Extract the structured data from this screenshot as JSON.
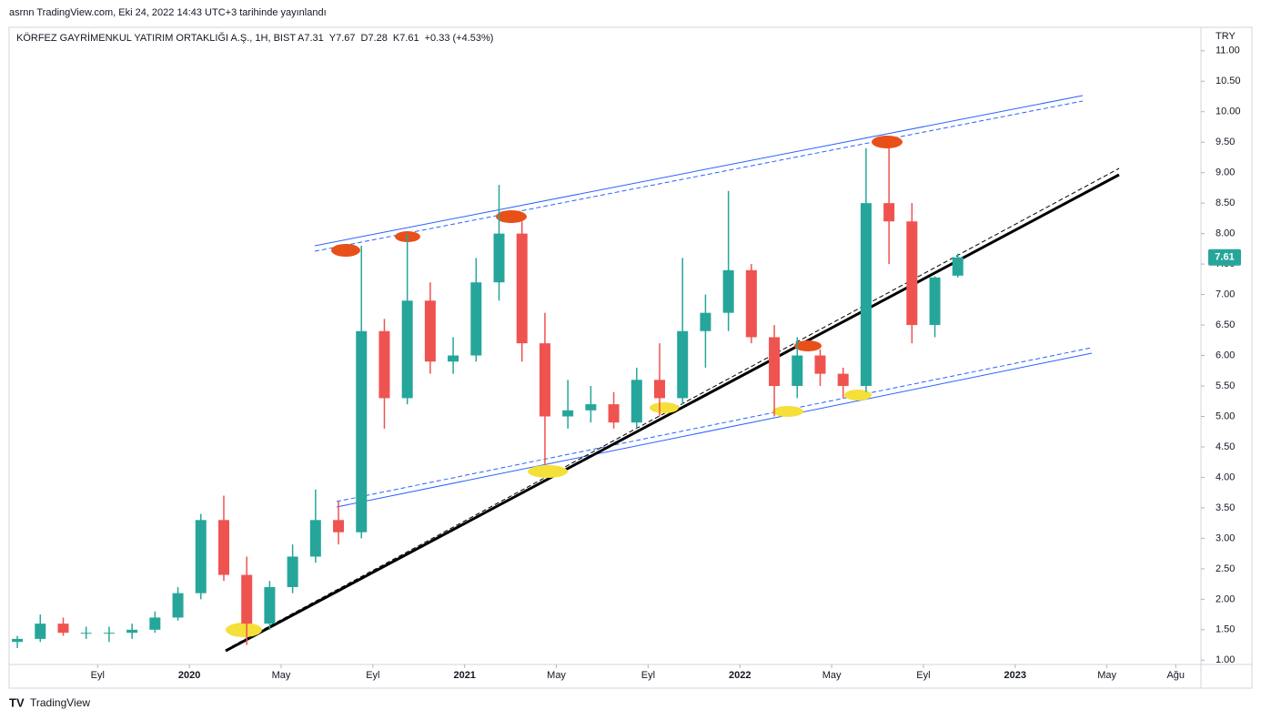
{
  "chart_data": {
    "type": "candlestick",
    "header": "asrnn TradingView.com, Eki 24, 2022 14:43 UTC+3 tarihinde yayınlandı",
    "title": "KÖRFEZ GAYRİMENKUL YATIRIM ORTAKLIĞI A.Ş., 1H, BIST",
    "legend_values": [
      "A7.31",
      "Y7.67",
      "D7.28",
      "K7.61",
      "+0.33 (+4.53%)"
    ],
    "currency": "TRY",
    "footer": "TradingView",
    "up_color": "#26a69a",
    "down_color": "#ef5350",
    "x": [
      4.5,
      5.5,
      6.5,
      7.5,
      8.5,
      9.5,
      10.5,
      11.5,
      12.5,
      13.5,
      14.5,
      15.5,
      16.5,
      17.5,
      18.5,
      19.5,
      20.5,
      21.5,
      22.5,
      23.5,
      24.5,
      25.5,
      26.5,
      27.5,
      28.5,
      29.5,
      30.5,
      31.5,
      32.5,
      33.5,
      34.5,
      35.5,
      36.5,
      37.5,
      38.5,
      39.5,
      40.5,
      41.5,
      42.5,
      43.5,
      44.5,
      45.5
    ],
    "open": [
      1.3,
      1.35,
      1.6,
      1.45,
      1.45,
      1.45,
      1.5,
      1.7,
      2.1,
      3.3,
      2.4,
      1.6,
      2.2,
      2.7,
      3.3,
      3.1,
      6.4,
      5.3,
      6.9,
      5.9,
      6.0,
      7.2,
      8.0,
      6.2,
      5.0,
      5.1,
      5.2,
      4.9,
      5.6,
      5.3,
      6.4,
      6.7,
      7.4,
      6.3,
      5.5,
      6.0,
      5.7,
      5.5,
      8.5,
      8.2,
      6.5,
      7.31
    ],
    "high": [
      1.4,
      1.75,
      1.7,
      1.55,
      1.55,
      1.6,
      1.8,
      2.2,
      3.4,
      3.7,
      2.7,
      2.3,
      2.9,
      3.8,
      3.6,
      7.8,
      6.6,
      8.0,
      7.2,
      6.3,
      7.6,
      8.8,
      8.2,
      6.7,
      5.6,
      5.5,
      5.4,
      5.8,
      6.2,
      7.6,
      7.0,
      8.7,
      7.5,
      6.5,
      6.3,
      6.1,
      5.8,
      9.4,
      9.4,
      8.5,
      7.3,
      7.67
    ],
    "low": [
      1.2,
      1.3,
      1.4,
      1.35,
      1.3,
      1.35,
      1.45,
      1.65,
      2.0,
      2.3,
      1.25,
      1.5,
      2.1,
      2.6,
      2.9,
      3.0,
      4.8,
      5.2,
      5.7,
      5.7,
      5.9,
      6.9,
      5.9,
      4.2,
      4.8,
      4.9,
      4.8,
      4.8,
      5.0,
      5.2,
      5.8,
      6.4,
      6.2,
      5.0,
      5.3,
      5.5,
      5.3,
      5.4,
      7.5,
      6.2,
      6.3,
      7.28
    ],
    "close": [
      1.35,
      1.6,
      1.45,
      1.45,
      1.45,
      1.5,
      1.7,
      2.1,
      3.3,
      2.4,
      1.6,
      2.2,
      2.7,
      3.3,
      3.1,
      6.4,
      5.3,
      6.9,
      5.9,
      6.0,
      7.2,
      8.0,
      6.2,
      5.0,
      5.1,
      5.2,
      4.9,
      5.6,
      5.3,
      6.4,
      6.7,
      7.4,
      6.3,
      5.5,
      6.0,
      5.7,
      5.5,
      8.5,
      8.2,
      6.5,
      7.28,
      7.61
    ],
    "xlim": [
      4.14,
      56.1
    ],
    "xticks": [
      {
        "value": 8,
        "label": "Eyl"
      },
      {
        "value": 12,
        "label": "2020"
      },
      {
        "value": 16,
        "label": "May"
      },
      {
        "value": 20,
        "label": "Eyl"
      },
      {
        "value": 24,
        "label": "2021"
      },
      {
        "value": 28,
        "label": "May"
      },
      {
        "value": 32,
        "label": "Eyl"
      },
      {
        "value": 36,
        "label": "2022"
      },
      {
        "value": 40,
        "label": "May"
      },
      {
        "value": 44,
        "label": "Eyl"
      },
      {
        "value": 48,
        "label": "2023"
      },
      {
        "value": 52,
        "label": "May"
      },
      {
        "value": 55,
        "label": "Ağu"
      }
    ],
    "ylim": [
      0.93,
      11.34
    ],
    "yticks": [
      {
        "value": 1,
        "label": "1.00"
      },
      {
        "value": 1.5,
        "label": "1.50"
      },
      {
        "value": 2,
        "label": "2.00"
      },
      {
        "value": 2.5,
        "label": "2.50"
      },
      {
        "value": 3,
        "label": "3.00"
      },
      {
        "value": 3.5,
        "label": "3.50"
      },
      {
        "value": 4,
        "label": "4.00"
      },
      {
        "value": 4.5,
        "label": "4.50"
      },
      {
        "value": 5,
        "label": "5.00"
      },
      {
        "value": 5.5,
        "label": "5.50"
      },
      {
        "value": 6,
        "label": "6.00"
      },
      {
        "value": 6.5,
        "label": "6.50"
      },
      {
        "value": 7,
        "label": "7.00"
      },
      {
        "value": 7.5,
        "label": "7.50"
      },
      {
        "value": 8,
        "label": "8.00"
      },
      {
        "value": 8.5,
        "label": "8.50"
      },
      {
        "value": 9,
        "label": "9.00"
      },
      {
        "value": 9.5,
        "label": "9.50"
      },
      {
        "value": 10,
        "label": "10.00"
      },
      {
        "value": 10.5,
        "label": "10.50"
      },
      {
        "value": 11,
        "label": "11.00"
      }
    ]
  }
}
